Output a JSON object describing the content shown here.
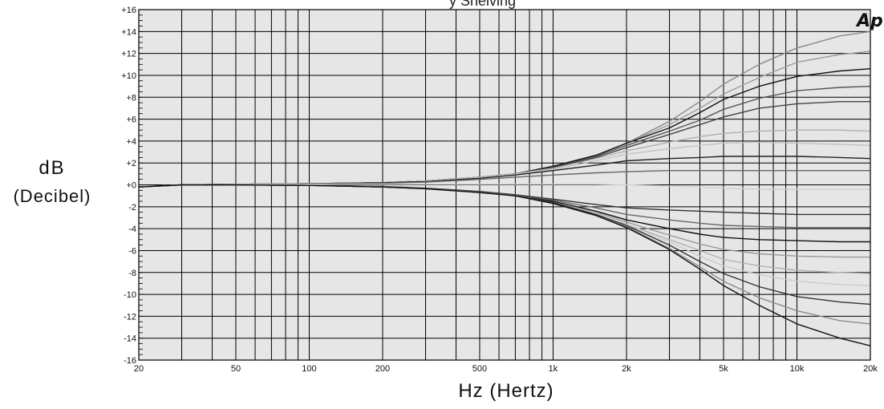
{
  "chart_data": {
    "type": "line",
    "title": "y Shelving",
    "logo": "Ap",
    "ylabel_line1": "dB",
    "ylabel_line2": "(Decibel)",
    "xlabel": "Hz (Hertz)",
    "x_scale": "log",
    "xlim": [
      20,
      20000
    ],
    "ylim": [
      -16,
      16
    ],
    "grid": true,
    "x_ticks": [
      {
        "value": 20,
        "label": "20"
      },
      {
        "value": 50,
        "label": "50"
      },
      {
        "value": 100,
        "label": "100"
      },
      {
        "value": 200,
        "label": "200"
      },
      {
        "value": 500,
        "label": "500"
      },
      {
        "value": 1000,
        "label": "1k"
      },
      {
        "value": 2000,
        "label": "2k"
      },
      {
        "value": 5000,
        "label": "5k"
      },
      {
        "value": 10000,
        "label": "10k"
      },
      {
        "value": 20000,
        "label": "20k"
      }
    ],
    "y_ticks": [
      {
        "value": 16,
        "label": "+16"
      },
      {
        "value": 14,
        "label": "+14"
      },
      {
        "value": 12,
        "label": "+12"
      },
      {
        "value": 10,
        "label": "+10"
      },
      {
        "value": 8,
        "label": "+8"
      },
      {
        "value": 6,
        "label": "+6"
      },
      {
        "value": 4,
        "label": "+4"
      },
      {
        "value": 2,
        "label": "+2"
      },
      {
        "value": 0,
        "label": "+0"
      },
      {
        "value": -2,
        "label": "-2"
      },
      {
        "value": -4,
        "label": "-4"
      },
      {
        "value": -6,
        "label": "-6"
      },
      {
        "value": -8,
        "label": "-8"
      },
      {
        "value": -10,
        "label": "-10"
      },
      {
        "value": -12,
        "label": "-12"
      },
      {
        "value": -14,
        "label": "-14"
      },
      {
        "value": -16,
        "label": "-16"
      }
    ],
    "x": [
      20,
      30,
      50,
      100,
      200,
      300,
      500,
      700,
      1000,
      1500,
      2000,
      3000,
      4000,
      5000,
      7000,
      10000,
      15000,
      20000
    ],
    "series": [
      {
        "color": "#8a8a8a",
        "values": [
          -0.2,
          0,
          0.05,
          0.1,
          0.2,
          0.35,
          0.7,
          1.0,
          1.7,
          2.7,
          3.8,
          5.8,
          7.6,
          9.2,
          11.0,
          12.5,
          13.6,
          14.0
        ]
      },
      {
        "color": "#9c9c9c",
        "values": [
          -0.2,
          0,
          0.05,
          0.1,
          0.2,
          0.35,
          0.7,
          1.0,
          1.7,
          2.7,
          3.8,
          5.5,
          7.0,
          8.3,
          9.8,
          11.2,
          11.9,
          12.2
        ]
      },
      {
        "color": "#111111",
        "values": [
          -0.2,
          0,
          0.05,
          0.1,
          0.2,
          0.35,
          0.7,
          1.0,
          1.7,
          2.7,
          3.8,
          5.2,
          6.6,
          7.8,
          9.0,
          9.9,
          10.4,
          10.6
        ]
      },
      {
        "color": "#555555",
        "values": [
          -0.2,
          0,
          0.05,
          0.1,
          0.2,
          0.35,
          0.7,
          1.0,
          1.6,
          2.6,
          3.6,
          4.9,
          5.9,
          6.9,
          7.9,
          8.6,
          8.9,
          9.0
        ]
      },
      {
        "color": "#444444",
        "values": [
          -0.2,
          0,
          0.05,
          0.1,
          0.2,
          0.35,
          0.7,
          1.0,
          1.6,
          2.5,
          3.4,
          4.6,
          5.5,
          6.2,
          7.0,
          7.4,
          7.6,
          7.6
        ]
      },
      {
        "color": "#b0b0b0",
        "values": [
          -0.2,
          0,
          0.05,
          0.1,
          0.2,
          0.35,
          0.7,
          1.0,
          1.5,
          2.4,
          3.1,
          3.9,
          4.4,
          4.7,
          4.9,
          5.0,
          5.0,
          4.9
        ]
      },
      {
        "color": "#c2c2c2",
        "values": [
          -0.2,
          0,
          0.05,
          0.1,
          0.2,
          0.35,
          0.65,
          0.95,
          1.4,
          2.2,
          2.8,
          3.3,
          3.6,
          3.8,
          3.9,
          3.8,
          3.7,
          3.6
        ]
      },
      {
        "color": "#222222",
        "values": [
          -0.2,
          0,
          0.05,
          0.1,
          0.2,
          0.3,
          0.6,
          0.9,
          1.3,
          1.8,
          2.2,
          2.4,
          2.5,
          2.6,
          2.6,
          2.6,
          2.5,
          2.4
        ]
      },
      {
        "color": "#666666",
        "values": [
          -0.2,
          0,
          0.05,
          0.1,
          0.15,
          0.25,
          0.5,
          0.7,
          0.9,
          1.1,
          1.2,
          1.3,
          1.3,
          1.3,
          1.3,
          1.3,
          1.3,
          1.3
        ]
      },
      {
        "color": "#d2d2d2",
        "values": [
          -0.2,
          0,
          0.05,
          0.05,
          0.05,
          0.05,
          0.05,
          0.05,
          0.05,
          0.05,
          0,
          -0.1,
          -0.2,
          -0.3,
          -0.4,
          -0.4,
          -0.4,
          -0.4
        ]
      },
      {
        "color": "#333333",
        "values": [
          -0.2,
          0,
          0.0,
          -0.05,
          -0.15,
          -0.3,
          -0.6,
          -0.9,
          -1.3,
          -1.8,
          -2.1,
          -2.3,
          -2.4,
          -2.5,
          -2.6,
          -2.7,
          -2.7,
          -2.7
        ]
      },
      {
        "color": "#666666",
        "values": [
          -0.2,
          0,
          0.0,
          -0.05,
          -0.15,
          -0.35,
          -0.65,
          -0.95,
          -1.4,
          -2.1,
          -2.7,
          -3.2,
          -3.5,
          -3.7,
          -3.8,
          -3.9,
          -3.9,
          -3.9
        ]
      },
      {
        "color": "#111111",
        "values": [
          -0.2,
          0,
          0.0,
          -0.05,
          -0.2,
          -0.35,
          -0.7,
          -1.0,
          -1.5,
          -2.4,
          -3.2,
          -4.0,
          -4.5,
          -4.8,
          -5.0,
          -5.1,
          -5.2,
          -5.2
        ]
      },
      {
        "color": "#9a9a9a",
        "values": [
          -0.2,
          0,
          0.0,
          -0.05,
          -0.2,
          -0.35,
          -0.7,
          -1.0,
          -1.6,
          -2.5,
          -3.4,
          -4.6,
          -5.4,
          -5.9,
          -6.3,
          -6.5,
          -6.6,
          -6.6
        ]
      },
      {
        "color": "#b2b2b2",
        "values": [
          -0.2,
          0,
          0.0,
          -0.05,
          -0.2,
          -0.35,
          -0.7,
          -1.0,
          -1.6,
          -2.6,
          -3.6,
          -5.0,
          -6.0,
          -6.8,
          -7.4,
          -7.8,
          -8.0,
          -8.1
        ]
      },
      {
        "color": "#cccccc",
        "values": [
          -0.2,
          0,
          0.0,
          -0.05,
          -0.2,
          -0.35,
          -0.7,
          -1.0,
          -1.6,
          -2.6,
          -3.6,
          -5.2,
          -6.5,
          -7.4,
          -8.2,
          -8.8,
          -9.1,
          -9.2
        ]
      },
      {
        "color": "#333333",
        "values": [
          -0.2,
          0,
          0.0,
          -0.05,
          -0.2,
          -0.35,
          -0.7,
          -1.0,
          -1.6,
          -2.7,
          -3.7,
          -5.5,
          -7.0,
          -8.1,
          -9.3,
          -10.2,
          -10.7,
          -10.9
        ]
      },
      {
        "color": "#8a8a8a",
        "values": [
          -0.2,
          0,
          0.0,
          -0.05,
          -0.2,
          -0.35,
          -0.7,
          -1.0,
          -1.7,
          -2.8,
          -3.8,
          -5.8,
          -7.5,
          -8.8,
          -10.3,
          -11.5,
          -12.4,
          -12.7
        ]
      },
      {
        "color": "#111111",
        "values": [
          -0.2,
          0,
          0.0,
          -0.05,
          -0.2,
          -0.35,
          -0.7,
          -1.0,
          -1.7,
          -2.8,
          -3.9,
          -5.9,
          -7.7,
          -9.2,
          -11.0,
          -12.7,
          -14.0,
          -14.7
        ]
      }
    ]
  }
}
